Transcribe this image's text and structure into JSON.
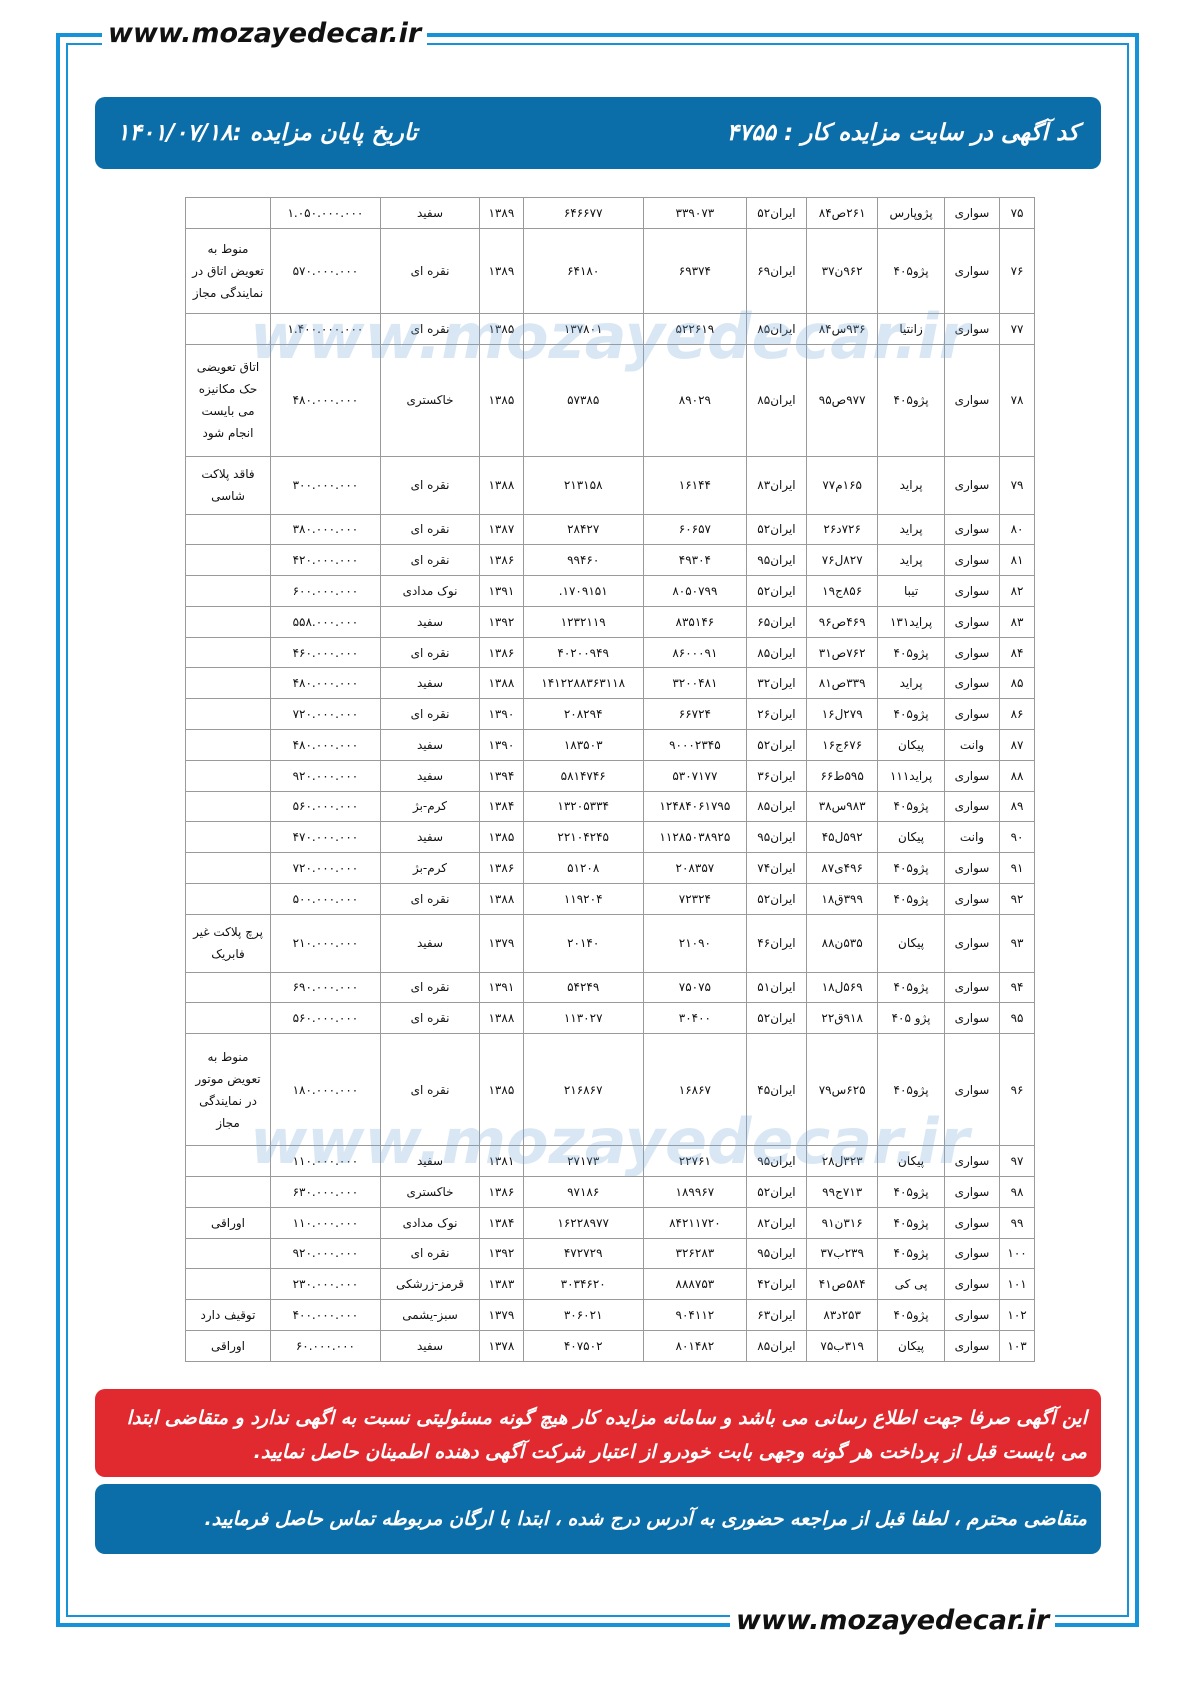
{
  "site": "www.mozayedecar.ir",
  "header": {
    "ad_code": "کد آگهی در سایت مزایده کار : ۴۷۵۵",
    "end_date": "تاریخ پایان مزایده :۱۴۰۱/۰۷/۱۸"
  },
  "table": {
    "rows": [
      [
        "۷۵",
        "سواری",
        "پژوپارس",
        "۲۶۱ص۸۴",
        "ایران۵۲",
        "۳۳۹۰۷۳",
        "۶۴۶۶۷۷",
        "۱۳۸۹",
        "سفید",
        "۱.۰۵۰.۰۰۰.۰۰۰"
      ],
      [
        "۷۶",
        "سواری",
        "پژو۴۰۵",
        "۹۶۲ن۳۷",
        "ایران۶۹",
        "۶۹۳۷۴",
        "۶۴۱۸۰",
        "۱۳۸۹",
        "نقره ای",
        "۵۷۰.۰۰۰.۰۰۰",
        "منوط به تعویض اتاق در نمایندگی مجاز"
      ],
      [
        "۷۷",
        "سواری",
        "زانتیا",
        "۹۳۶س۸۴",
        "ایران۸۵",
        "۵۲۲۶۱۹",
        "۱۳۷۸۰۱",
        "۱۳۸۵",
        "نقره ای",
        "۱.۴۰۰.۰۰۰.۰۰۰"
      ],
      [
        "۷۸",
        "سواری",
        "پژو۴۰۵",
        "۹۷۷ص۹۵",
        "ایران۸۵",
        "۸۹۰۲۹",
        "۵۷۳۸۵",
        "۱۳۸۵",
        "خاکستری",
        "۴۸۰.۰۰۰.۰۰۰",
        "اتاق تعویضی حک مکانیزه می بایست انجام شود"
      ],
      [
        "۷۹",
        "سواری",
        "پراید",
        "۱۶۵م۷۷",
        "ایران۸۳",
        "۱۶۱۴۴",
        "۲۱۳۱۵۸",
        "۱۳۸۸",
        "نقره ای",
        "۳۰۰.۰۰۰.۰۰۰",
        "فاقد پلاکت شاسی"
      ],
      [
        "۸۰",
        "سواری",
        "پراید",
        "۷۲۶د۲۶",
        "ایران۵۲",
        "۶۰۶۵۷",
        "۲۸۴۲۷",
        "۱۳۸۷",
        "نقره ای",
        "۳۸۰.۰۰۰.۰۰۰"
      ],
      [
        "۸۱",
        "سواری",
        "پراید",
        "۸۲۷ل۷۶",
        "ایران۹۵",
        "۴۹۳۰۴",
        "۹۹۴۶۰",
        "۱۳۸۶",
        "نقره ای",
        "۴۲۰.۰۰۰.۰۰۰"
      ],
      [
        "۸۲",
        "سواری",
        "تیبا",
        "۸۵۶ج۱۹",
        "ایران۵۲",
        "۸۰۵۰۷۹۹",
        "۱۷۰۹۱۵۱.",
        "۱۳۹۱",
        "نوک مدادی",
        "۶۰۰.۰۰۰.۰۰۰"
      ],
      [
        "۸۳",
        "سواری",
        "پراید۱۳۱",
        "۴۶۹ص۹۶",
        "ایران۶۵",
        "۸۳۵۱۴۶",
        "۱۲۳۲۱۱۹",
        "۱۳۹۲",
        "سفید",
        "۵۵۸.۰۰۰.۰۰۰"
      ],
      [
        "۸۴",
        "سواری",
        "پژو۴۰۵",
        "۷۶۲ص۳۱",
        "ایران۸۵",
        "۸۶۰۰۰۹۱",
        "۴۰۲۰۰۹۴۹",
        "۱۳۸۶",
        "نقره ای",
        "۴۶۰.۰۰۰.۰۰۰"
      ],
      [
        "۸۵",
        "سواری",
        "پراید",
        "۳۳۹ص۸۱",
        "ایران۳۲",
        "۳۲۰۰۴۸۱",
        "۱۴۱۲۲۸۸۳۶۳۱۱۸",
        "۱۳۸۸",
        "سفید",
        "۴۸۰.۰۰۰.۰۰۰"
      ],
      [
        "۸۶",
        "سواری",
        "پژو۴۰۵",
        "۲۷۹ل۱۶",
        "ایران۲۶",
        "۶۶۷۲۴",
        "۲۰۸۲۹۴",
        "۱۳۹۰",
        "نقره ای",
        "۷۲۰.۰۰۰.۰۰۰"
      ],
      [
        "۸۷",
        "وانت",
        "پیکان",
        "۶۷۶ج۱۶",
        "ایران۵۲",
        "۹۰۰۰۲۳۴۵",
        "۱۸۳۵۰۳",
        "۱۳۹۰",
        "سفید",
        "۴۸۰.۰۰۰.۰۰۰"
      ],
      [
        "۸۸",
        "سواری",
        "پراید۱۱۱",
        "۵۹۵ط۶۶",
        "ایران۳۶",
        "۵۳۰۷۱۷۷",
        "۵۸۱۴۷۴۶",
        "۱۳۹۴",
        "سفید",
        "۹۲۰.۰۰۰.۰۰۰"
      ],
      [
        "۸۹",
        "سواری",
        "پژو۴۰۵",
        "۹۸۳س۳۸",
        "ایران۸۵",
        "۱۲۴۸۴۰۶۱۷۹۵",
        "۱۳۲۰۵۳۳۴",
        "۱۳۸۴",
        "کرم-بژ",
        "۵۶۰.۰۰۰.۰۰۰"
      ],
      [
        "۹۰",
        "وانت",
        "پیکان",
        "۵۹۲ل۴۵",
        "ایران۹۵",
        "۱۱۲۸۵۰۳۸۹۲۵",
        "۲۲۱۰۴۲۴۵",
        "۱۳۸۵",
        "سفید",
        "۴۷۰.۰۰۰.۰۰۰"
      ],
      [
        "۹۱",
        "سواری",
        "پژو۴۰۵",
        "۴۹۶ی۸۷",
        "ایران۷۴",
        "۲۰۸۳۵۷",
        "۵۱۲۰۸",
        "۱۳۸۶",
        "کرم-بژ",
        "۷۲۰.۰۰۰.۰۰۰"
      ],
      [
        "۹۲",
        "سواری",
        "پژو۴۰۵",
        "۳۹۹ق۱۸",
        "ایران۵۲",
        "۷۲۳۲۴",
        "۱۱۹۲۰۴",
        "۱۳۸۸",
        "نقره ای",
        "۵۰۰.۰۰۰.۰۰۰"
      ],
      [
        "۹۳",
        "سواری",
        "پیکان",
        "۵۳۵ن۸۸",
        "ایران۴۶",
        "۲۱۰۹۰",
        "۲۰۱۴۰",
        "۱۳۷۹",
        "سفید",
        "۲۱۰.۰۰۰.۰۰۰",
        "پرچ پلاکت غیر فابریک"
      ],
      [
        "۹۴",
        "سواری",
        "پژو۴۰۵",
        "۵۶۹ل۱۸",
        "ایران۵۱",
        "۷۵۰۷۵",
        "۵۴۲۴۹",
        "۱۳۹۱",
        "نقره ای",
        "۶۹۰.۰۰۰.۰۰۰"
      ],
      [
        "۹۵",
        "سواری",
        "پژو ۴۰۵",
        "۹۱۸ق۲۲",
        "ایران۵۲",
        "۳۰۴۰۰",
        "۱۱۳۰۲۷",
        "۱۳۸۸",
        "نقره ای",
        "۵۶۰.۰۰۰.۰۰۰"
      ],
      [
        "۹۶",
        "سواری",
        "پژو۴۰۵",
        "۶۲۵س۷۹",
        "ایران۴۵",
        "۱۶۸۶۷",
        "۲۱۶۸۶۷",
        "۱۳۸۵",
        "نقره ای",
        "۱۸۰.۰۰۰.۰۰۰",
        "منوط به تعویض موتور در نمایندگی مجاز"
      ],
      [
        "۹۷",
        "سواری",
        "پیکان",
        "۳۲۳ل۲۸",
        "ایران۹۵",
        "۲۲۷۶۱",
        "۲۷۱۷۳",
        "۱۳۸۱",
        "سفید",
        "۱۱۰.۰۰۰.۰۰۰"
      ],
      [
        "۹۸",
        "سواری",
        "پژو۴۰۵",
        "۷۱۳ج۹۹",
        "ایران۵۲",
        "۱۸۹۹۶۷",
        "۹۷۱۸۶",
        "۱۳۸۶",
        "خاکستری",
        "۶۳۰.۰۰۰.۰۰۰"
      ],
      [
        "۹۹",
        "سواری",
        "پژو۴۰۵",
        "۳۱۶ن۹۱",
        "ایران۸۲",
        "۸۴۲۱۱۷۲۰",
        "۱۶۲۲۸۹۷۷",
        "۱۳۸۴",
        "نوک مدادی",
        "۱۱۰.۰۰۰.۰۰۰",
        "اوراقی"
      ],
      [
        "۱۰۰",
        "سواری",
        "پژو۴۰۵",
        "۲۳۹ب۳۷",
        "ایران۹۵",
        "۳۲۶۲۸۳",
        "۴۷۲۷۲۹",
        "۱۳۹۲",
        "نقره ای",
        "۹۲۰.۰۰۰.۰۰۰"
      ],
      [
        "۱۰۱",
        "سواری",
        "پی کی",
        "۵۸۴ص۴۱",
        "ایران۴۲",
        "۸۸۸۷۵۳",
        "۳۰۳۴۶۲۰",
        "۱۳۸۳",
        "قرمز-زرشکی",
        "۲۳۰.۰۰۰.۰۰۰"
      ],
      [
        "۱۰۲",
        "سواری",
        "پژو۴۰۵",
        "۲۵۳د۸۳",
        "ایران۶۳",
        "۹۰۴۱۱۲",
        "۳۰۶۰۲۱",
        "۱۳۷۹",
        "سبز-یشمی",
        "۴۰۰.۰۰۰.۰۰۰",
        "توقیف دارد"
      ],
      [
        "۱۰۳",
        "سواری",
        "پیکان",
        "۳۱۹ب۷۵",
        "ایران۸۵",
        "۸۰۱۴۸۲",
        "۴۰۷۵۰۲",
        "۱۳۷۸",
        "سفید",
        "۶۰.۰۰۰.۰۰۰",
        "اوراقی"
      ]
    ]
  },
  "notices": {
    "disclaimer": "این آگهی صرفا جهت اطلاع رسانی می باشد و سامانه مزایده کار هیچ گونه مسئولیتی نسبت به اگهی ندارد و متقاضی ابتدا می بایست قبل از پرداخت هر گونه وجهی بابت خودرو  از اعتبار شرکت آگهی دهنده اطمینان حاصل نمایید.",
    "visit": "متقاضی محترم ، لطفا قبل از مراجعه حضوری به آدرس درج شده ، ابتدا با ارگان مربوطه تماس حاصل فرمایید."
  }
}
